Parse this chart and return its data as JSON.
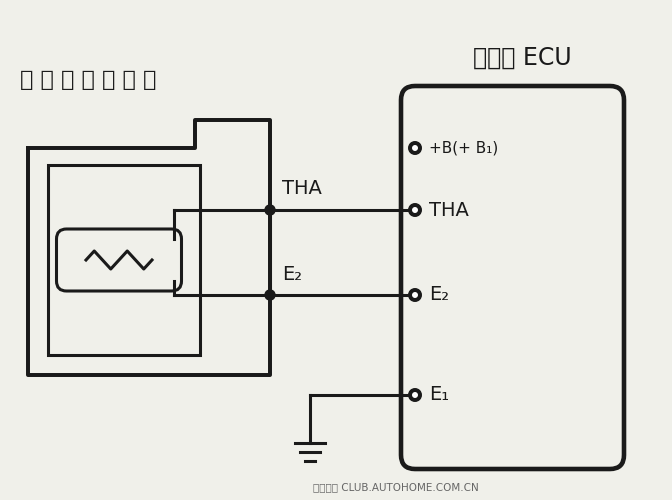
{
  "bg_color": "#f0f0ea",
  "line_color": "#1a1a1a",
  "title_ecu": "发动机 ECU",
  "title_sensor": "进 气 温 度 传 感 器",
  "label_THA_left": "THA",
  "label_E2_left": "E₂",
  "label_THA_right": "THA",
  "label_E2_right": "E₂",
  "label_E1": "E₁",
  "label_Bplus": "+B(+ B₁)",
  "watermark": "汽车之家 CLUB.AUTOHOME.COM.CN",
  "lw": 2.2
}
